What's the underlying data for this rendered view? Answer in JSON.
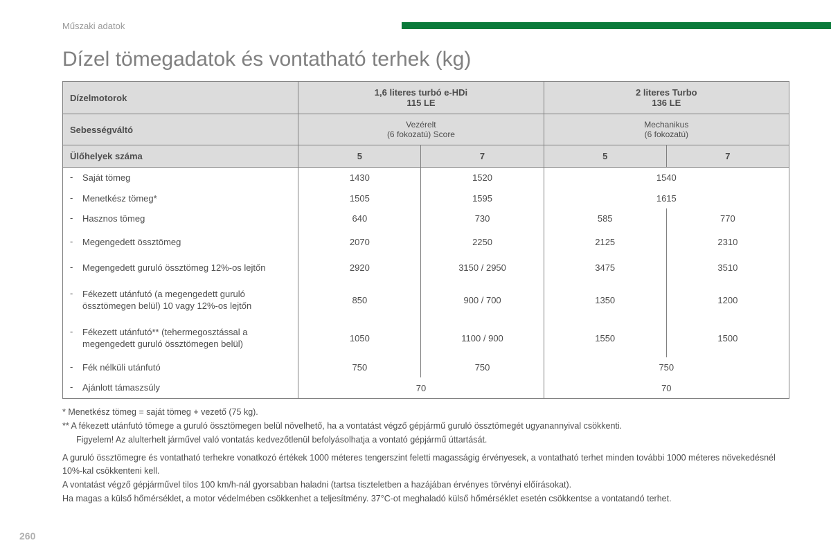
{
  "colors": {
    "accent_bar": "#0a7a3a",
    "header_bg": "#dcdcdc",
    "border": "#808080",
    "text": "#4d4d4d",
    "muted": "#9a9a9a"
  },
  "page_number": "260",
  "section_label": "Műszaki adatok",
  "title": "Dízel tömegadatok és vontatható terhek (kg)",
  "header": {
    "row1_label": "Dízelmotorok",
    "engine1_line1": "1,6 literes turbó e-HDi",
    "engine1_line2": "115 LE",
    "engine2_line1": "2 literes Turbo",
    "engine2_line2": "136 LE",
    "row2_label": "Sebességváltó",
    "gearbox1_line1": "Vezérelt",
    "gearbox1_line2": "(6 fokozatú) Score",
    "gearbox2_line1": "Mechanikus",
    "gearbox2_line2": "(6 fokozatú)",
    "row3_label": "Ülőhelyek száma",
    "seats": {
      "a": "5",
      "b": "7",
      "c": "5",
      "d": "7"
    }
  },
  "rows": {
    "r1": {
      "label": "Saját tömeg",
      "a": "1430",
      "b": "1520",
      "cd": "1540"
    },
    "r2": {
      "label": "Menetkész tömeg*",
      "a": "1505",
      "b": "1595",
      "cd": "1615"
    },
    "r3": {
      "label": "Hasznos tömeg",
      "a": "640",
      "b": "730",
      "c": "585",
      "d": "770"
    },
    "r4": {
      "label": "Megengedett össztömeg",
      "a": "2070",
      "b": "2250",
      "c": "2125",
      "d": "2310"
    },
    "r5": {
      "label": "Megengedett guruló össztömeg 12%-os lejtőn",
      "a": "2920",
      "b": "3150 / 2950",
      "c": "3475",
      "d": "3510"
    },
    "r6": {
      "label": "Fékezett utánfutó (a megengedett guruló össztömegen belül) 10 vagy 12%-os lejtőn",
      "a": "850",
      "b": "900 / 700",
      "c": "1350",
      "d": "1200"
    },
    "r7": {
      "label": "Fékezett utánfutó** (tehermegosztással a megengedett guruló össztömegen belül)",
      "a": "1050",
      "b": "1100 / 900",
      "c": "1550",
      "d": "1500"
    },
    "r8": {
      "label": "Fék nélküli utánfutó",
      "a": "750",
      "b": "750",
      "cd": "750"
    },
    "r9": {
      "label": "Ajánlott támaszsúly",
      "ab": "70",
      "cd": "70"
    }
  },
  "footnotes": {
    "f1": "* Menetkész tömeg = saját tömeg + vezető (75 kg).",
    "f2": "** A fékezett utánfutó tömege a guruló össztömegen belül növelhető, ha a vontatást végző gépjármű guruló össztömegét ugyanannyival csökkenti.",
    "f3": "Figyelem! Az alulterhelt járművel való vontatás kedvezőtlenül befolyásolhatja a vontató gépjármű úttartását.",
    "p1": "A guruló össztömegre és vontatható terhekre vonatkozó értékek 1000 méteres tengerszint feletti magasságig érvényesek, a vontatható terhet minden további 1000 méteres növekedésnél 10%-kal csökkenteni kell.",
    "p2": "A vontatást végző gépjárművel tilos 100 km/h-nál gyorsabban haladni (tartsa tiszteletben a hazájában érvényes törvényi előírásokat).",
    "p3": "Ha magas a külső hőmérséklet, a motor védelmében csökkenhet a teljesítmény. 37°C-ot meghaladó külső hőmérséklet esetén csökkentse a vontatandó terhet."
  }
}
